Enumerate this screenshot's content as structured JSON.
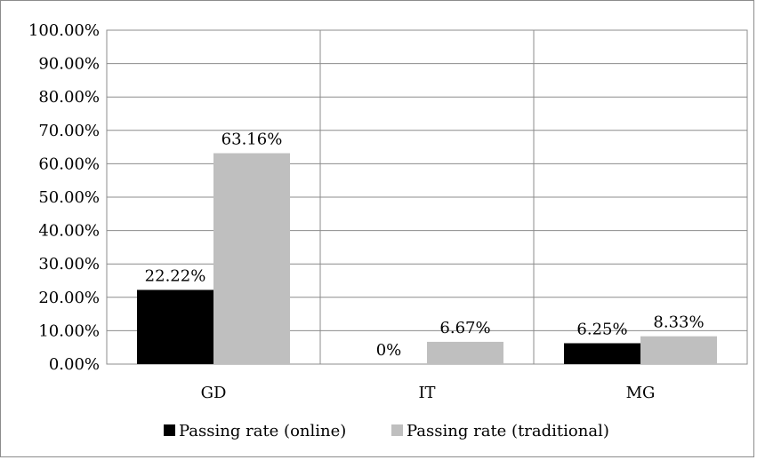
{
  "chart_data": {
    "type": "bar",
    "categories": [
      "GD",
      "IT",
      "MG"
    ],
    "series": [
      {
        "name": "Passing rate (online)",
        "values": [
          22.22,
          0,
          6.25
        ],
        "color": "#000000",
        "labels": [
          "22.22%",
          "0%",
          "6.25%"
        ]
      },
      {
        "name": "Passing rate (traditional)",
        "values": [
          63.16,
          6.67,
          8.33
        ],
        "color": "#bfbfbf",
        "labels": [
          "63.16%",
          "6.67%",
          "8.33%"
        ]
      }
    ],
    "yticks": [
      "0.00%",
      "10.00%",
      "20.00%",
      "30.00%",
      "40.00%",
      "50.00%",
      "60.00%",
      "70.00%",
      "80.00%",
      "90.00%",
      "100.00%"
    ],
    "ylim": [
      0,
      100
    ],
    "grid": true,
    "legend_position": "bottom"
  }
}
